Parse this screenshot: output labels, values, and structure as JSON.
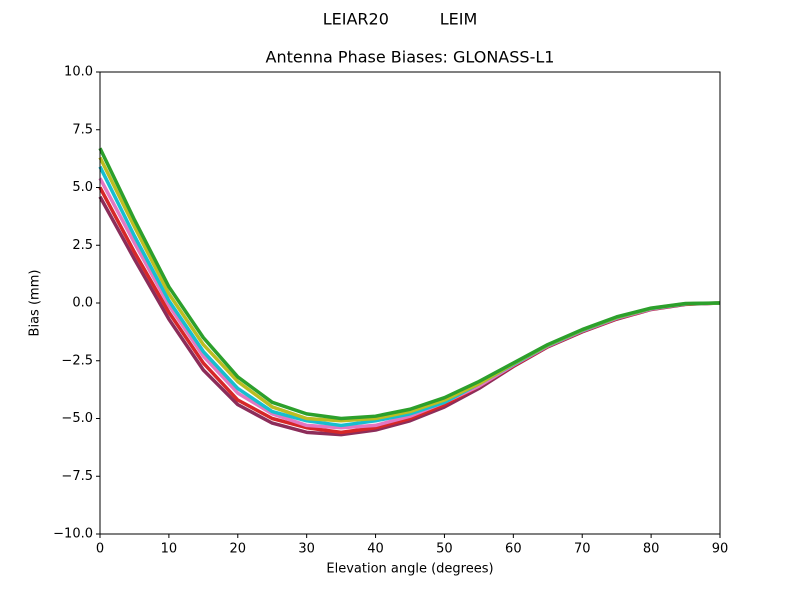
{
  "chart_data": {
    "type": "line",
    "suptitle": "LEIAR20          LEIM",
    "title": "Antenna Phase Biases: GLONASS-L1",
    "xlabel": "Elevation angle (degrees)",
    "ylabel": "Bias (mm)",
    "x": [
      0,
      5,
      10,
      15,
      20,
      25,
      30,
      35,
      40,
      45,
      50,
      55,
      60,
      65,
      70,
      75,
      80,
      85,
      90
    ],
    "xlim": [
      0,
      90
    ],
    "xticks": [
      0,
      10,
      20,
      30,
      40,
      50,
      60,
      70,
      80,
      90
    ],
    "ylim": [
      -10,
      10
    ],
    "yticks": [
      {
        "value": -10,
        "label": "−10.0"
      },
      {
        "value": -7.5,
        "label": "−7.5"
      },
      {
        "value": -5,
        "label": "−5.0"
      },
      {
        "value": -2.5,
        "label": "−2.5"
      },
      {
        "value": 0,
        "label": "0.0"
      },
      2.5,
      {
        "value": 5,
        "label": "5.0"
      },
      7.5,
      {
        "value": 10,
        "label": "10.0"
      }
    ],
    "grid": false,
    "series": [
      {
        "color": "#8c2d5a",
        "values": [
          4.6,
          1.9,
          -0.7,
          -2.9,
          -4.4,
          -5.2,
          -5.6,
          -5.7,
          -5.5,
          -5.1,
          -4.5,
          -3.7,
          -2.75,
          -1.9,
          -1.25,
          -0.7,
          -0.28,
          -0.06,
          0
        ]
      },
      {
        "color": "#d62728",
        "values": [
          5.0,
          2.2,
          -0.4,
          -2.6,
          -4.2,
          -5.0,
          -5.4,
          -5.6,
          -5.4,
          -5.0,
          -4.4,
          -3.6,
          -2.72,
          -1.88,
          -1.23,
          -0.68,
          -0.27,
          -0.05,
          0
        ]
      },
      {
        "color": "#e377c2",
        "values": [
          5.4,
          2.6,
          -0.1,
          -2.3,
          -3.9,
          -4.8,
          -5.3,
          -5.4,
          -5.3,
          -4.9,
          -4.3,
          -3.6,
          -2.69,
          -1.86,
          -1.21,
          -0.66,
          -0.26,
          -0.04,
          0
        ]
      },
      {
        "color": "#17becf",
        "values": [
          5.9,
          2.9,
          0.1,
          -2.1,
          -3.7,
          -4.7,
          -5.1,
          -5.3,
          -5.1,
          -4.8,
          -4.3,
          -3.5,
          -2.66,
          -1.84,
          -1.19,
          -0.64,
          -0.24,
          -0.04,
          0
        ]
      },
      {
        "color": "#bcbd22",
        "values": [
          6.3,
          3.3,
          0.4,
          -1.8,
          -3.4,
          -4.5,
          -5.0,
          -5.1,
          -5.0,
          -4.7,
          -4.2,
          -3.5,
          -2.63,
          -1.82,
          -1.17,
          -0.62,
          -0.23,
          -0.03,
          0
        ]
      },
      {
        "color": "#2ca02c",
        "values": [
          6.7,
          3.6,
          0.7,
          -1.5,
          -3.2,
          -4.3,
          -4.8,
          -5.0,
          -4.9,
          -4.6,
          -4.1,
          -3.4,
          -2.6,
          -1.8,
          -1.15,
          -0.6,
          -0.22,
          -0.02,
          0
        ]
      }
    ]
  }
}
